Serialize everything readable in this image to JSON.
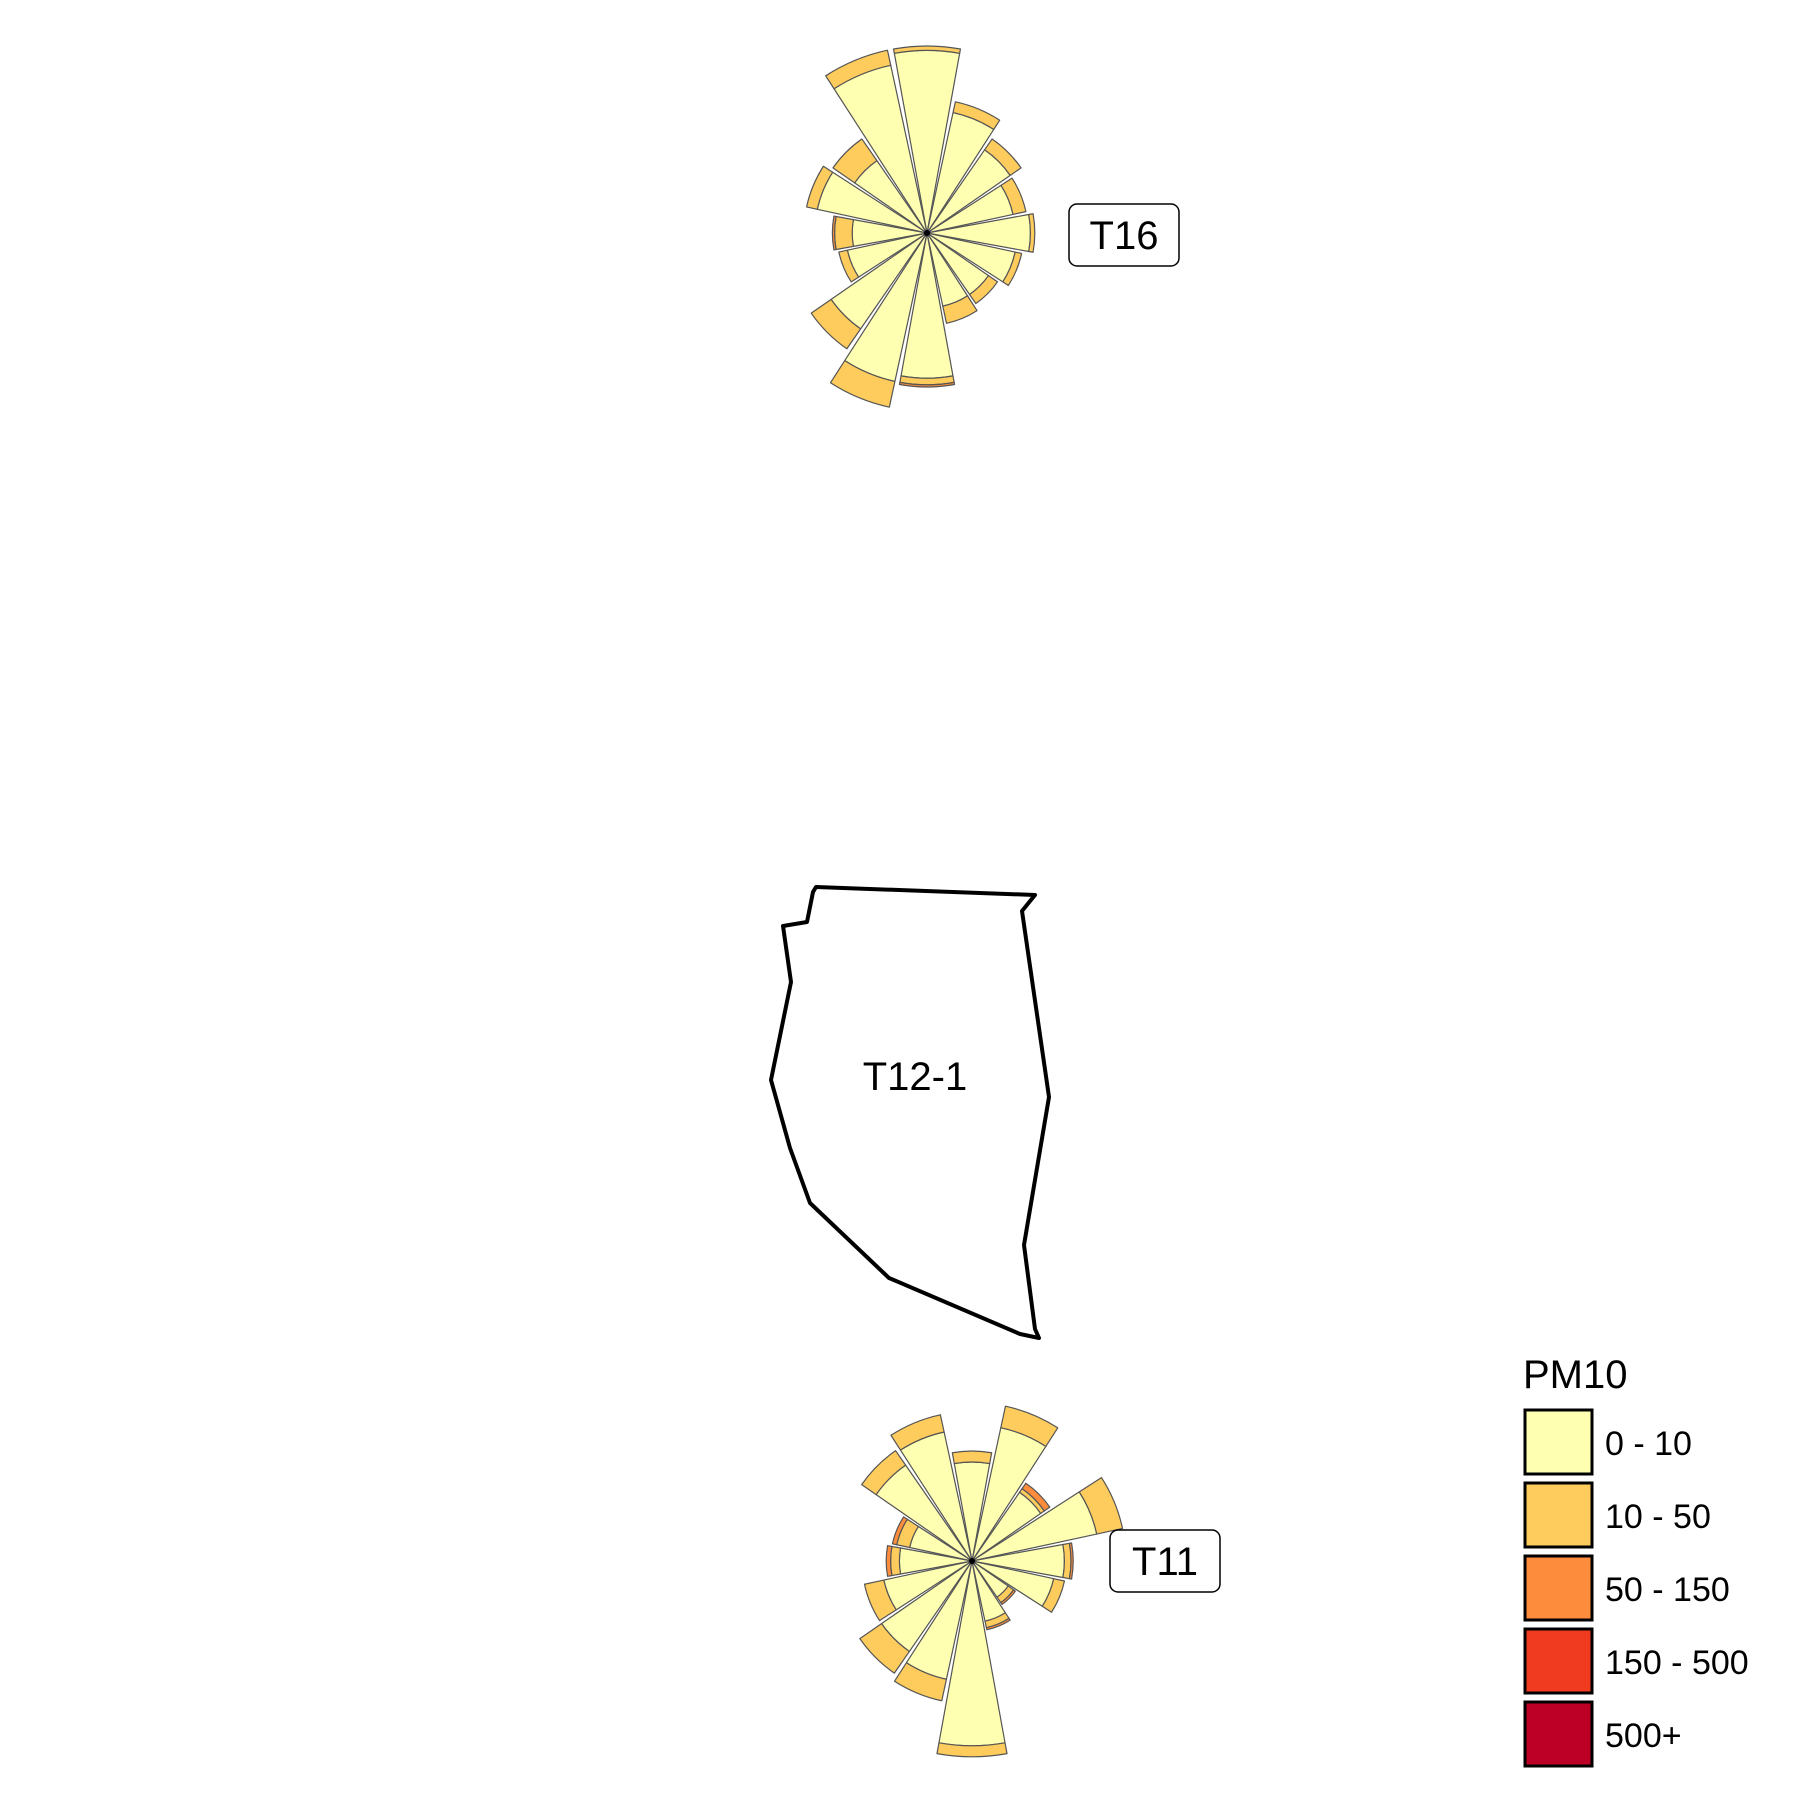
{
  "legend": {
    "title": "PM10",
    "bins": [
      {
        "label": "0 - 10",
        "color": "#FFFFB2"
      },
      {
        "label": "10 - 50",
        "color": "#FECC5C"
      },
      {
        "label": "50 - 150",
        "color": "#FD8D3C"
      },
      {
        "label": "150 - 500",
        "color": "#F03B20"
      },
      {
        "label": "500+",
        "color": "#BD0026"
      }
    ]
  },
  "area": {
    "label": "T12-1"
  },
  "chart_data": [
    {
      "type": "rose",
      "station": "T16",
      "directions_deg": [
        0,
        22.5,
        45,
        67.5,
        90,
        112.5,
        135,
        157.5,
        180,
        202.5,
        225,
        247.5,
        270,
        292.5,
        315,
        337.5
      ],
      "bins": [
        "0 - 10",
        "10 - 50",
        "50 - 150",
        "150 - 500",
        "500+"
      ],
      "segments": [
        [
          0.83,
          0.02,
          0,
          0,
          0
        ],
        [
          0.56,
          0.05,
          0,
          0,
          0
        ],
        [
          0.46,
          0.06,
          0,
          0,
          0
        ],
        [
          0.4,
          0.06,
          0,
          0,
          0
        ],
        [
          0.47,
          0.02,
          0,
          0,
          0
        ],
        [
          0.41,
          0.03,
          0,
          0,
          0
        ],
        [
          0.34,
          0.05,
          0,
          0,
          0
        ],
        [
          0.34,
          0.08,
          0,
          0,
          0
        ],
        [
          0.66,
          0.03,
          0.01,
          0,
          0
        ],
        [
          0.69,
          0.12,
          0,
          0,
          0
        ],
        [
          0.53,
          0.11,
          0,
          0,
          0
        ],
        [
          0.37,
          0.04,
          0,
          0,
          0
        ],
        [
          0.34,
          0.08,
          0.01,
          0,
          0
        ],
        [
          0.51,
          0.05,
          0,
          0,
          0
        ],
        [
          0.4,
          0.12,
          0,
          0,
          0
        ],
        [
          0.78,
          0.07,
          0,
          0,
          0
        ]
      ]
    },
    {
      "type": "rose",
      "station": "T11",
      "directions_deg": [
        0,
        22.5,
        45,
        67.5,
        90,
        112.5,
        135,
        157.5,
        180,
        202.5,
        225,
        247.5,
        270,
        292.5,
        315,
        337.5
      ],
      "bins": [
        "0 - 10",
        "10 - 50",
        "50 - 150",
        "150 - 500",
        "500+"
      ],
      "segments": [
        [
          0.45,
          0.05,
          0,
          0,
          0
        ],
        [
          0.62,
          0.1,
          0,
          0,
          0
        ],
        [
          0.38,
          0.02,
          0.03,
          0,
          0
        ],
        [
          0.58,
          0.12,
          0,
          0,
          0
        ],
        [
          0.42,
          0.03,
          0.01,
          0,
          0
        ],
        [
          0.38,
          0.05,
          0,
          0,
          0
        ],
        [
          0.2,
          0.03,
          0.01,
          0,
          0
        ],
        [
          0.28,
          0.03,
          0.01,
          0,
          0
        ],
        [
          0.84,
          0.05,
          0,
          0,
          0
        ],
        [
          0.55,
          0.1,
          0,
          0,
          0
        ],
        [
          0.5,
          0.12,
          0,
          0,
          0
        ],
        [
          0.41,
          0.09,
          0,
          0,
          0
        ],
        [
          0.33,
          0.04,
          0.02,
          0,
          0
        ],
        [
          0.29,
          0.06,
          0.02,
          0,
          0
        ],
        [
          0.53,
          0.08,
          0,
          0,
          0
        ],
        [
          0.6,
          0.08,
          0,
          0,
          0
        ]
      ]
    }
  ]
}
